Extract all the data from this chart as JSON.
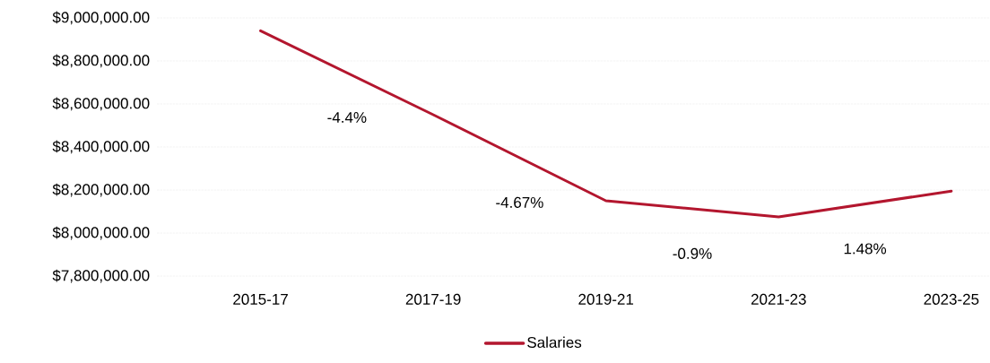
{
  "chart_data": {
    "type": "line",
    "categories": [
      "2015-17",
      "2017-19",
      "2019-21",
      "2021-23",
      "2023-25"
    ],
    "series": [
      {
        "name": "Salaries",
        "color": "#b3162e",
        "values": [
          8940000,
          8550000,
          8150000,
          8075000,
          8195000
        ]
      }
    ],
    "ylim": [
      7800000,
      9000000
    ],
    "yticks": [
      {
        "value": 7800000,
        "label": "$7,800,000.00"
      },
      {
        "value": 8000000,
        "label": "$8,000,000.00"
      },
      {
        "value": 8200000,
        "label": "$8,200,000.00"
      },
      {
        "value": 8400000,
        "label": "$8,400,000.00"
      },
      {
        "value": 8600000,
        "label": "$8,600,000.00"
      },
      {
        "value": 8800000,
        "label": "$8,800,000.00"
      },
      {
        "value": 9000000,
        "label": "$9,000,000.00"
      }
    ],
    "annotations": [
      "-4.4%",
      "-4.67%",
      "-0.9%",
      "1.48%"
    ],
    "grid": "y",
    "legend": "bottom",
    "marker": "none",
    "line_style": "solid"
  }
}
